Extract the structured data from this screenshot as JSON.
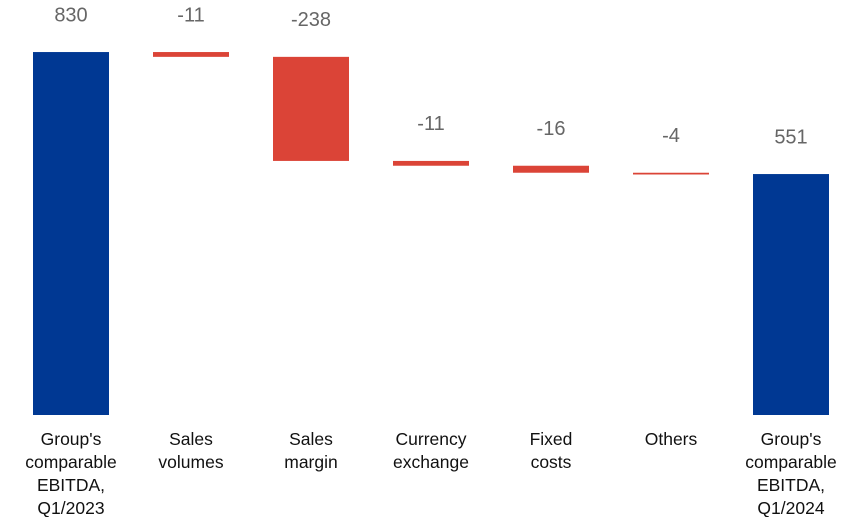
{
  "chart_data": {
    "type": "waterfall",
    "categories": [
      "Group's\ncomparable\nEBITDA,\nQ1/2023",
      "Sales\nvolumes",
      "Sales\nmargin",
      "Currency\nexchange",
      "Fixed\ncosts",
      "Others",
      "Group's\ncomparable\nEBITDA,\nQ1/2024"
    ],
    "values": [
      830,
      -11,
      -238,
      -11,
      -16,
      -4,
      551
    ],
    "measures": [
      "absolute",
      "relative",
      "relative",
      "relative",
      "relative",
      "relative",
      "total"
    ],
    "colors": {
      "total": "#003893",
      "decrease": "#db4437",
      "increase": "#2e9e4f"
    },
    "ylim": [
      0,
      850
    ]
  }
}
